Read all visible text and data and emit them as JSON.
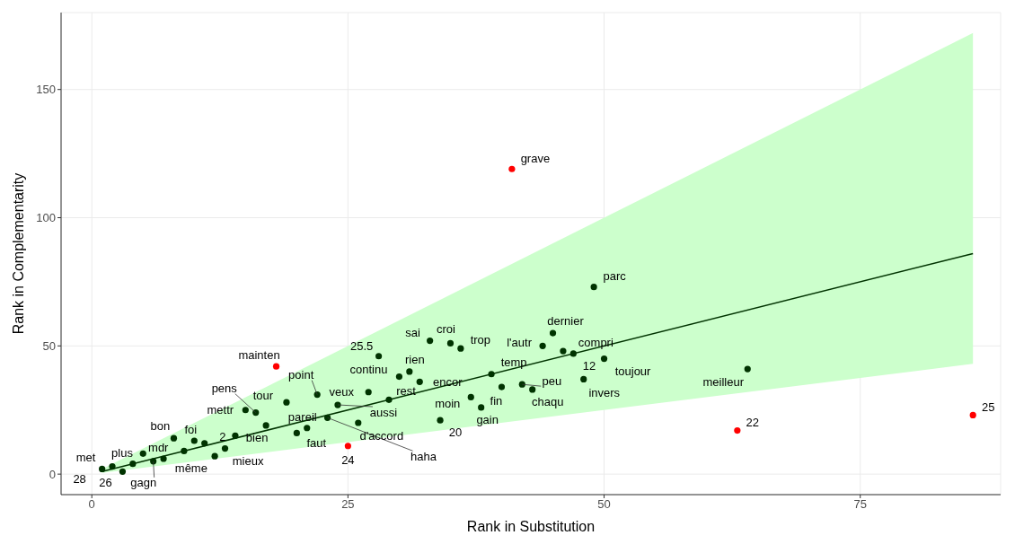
{
  "chart_data": {
    "type": "scatter",
    "xlabel": "Rank in Substitution",
    "ylabel": "Rank in Complementarity",
    "xlim": [
      -3,
      88.7
    ],
    "ylim": [
      -8,
      180
    ],
    "xticks": [
      0,
      25,
      50,
      75
    ],
    "yticks": [
      0,
      50,
      100,
      150
    ],
    "grid": true,
    "series": [
      {
        "type": "line",
        "x": [
          1,
          86
        ],
        "values": [
          1,
          86
        ],
        "lower": [
          0.5,
          43
        ],
        "upper": [
          2,
          172
        ],
        "color": "#003300"
      },
      {
        "marker": "circle",
        "x": [
          1,
          2,
          3,
          4,
          5,
          6,
          7,
          8,
          9,
          10,
          11,
          12,
          13,
          14,
          15,
          16,
          17,
          19,
          20,
          21,
          22,
          23,
          24,
          26,
          27,
          28,
          29,
          30,
          31,
          32,
          33,
          34,
          35,
          36,
          37,
          38,
          39,
          40,
          42,
          43,
          44,
          45,
          46,
          47,
          48,
          49,
          50,
          64
        ],
        "values": [
          2,
          3,
          1,
          4,
          8,
          5,
          6,
          14,
          9,
          13,
          12,
          7,
          10,
          15,
          25,
          24,
          19,
          28,
          16,
          18,
          31,
          22,
          27,
          20,
          32,
          46,
          29,
          38,
          40,
          36,
          52,
          21,
          51,
          49,
          30,
          26,
          39,
          34,
          35,
          33,
          50,
          55,
          48,
          47,
          37,
          73,
          45,
          41
        ],
        "color": "#003300"
      },
      {
        "marker": "circle",
        "x": [
          18,
          25,
          41,
          63,
          86
        ],
        "values": [
          42,
          11,
          119,
          17,
          23
        ],
        "color": "#ff0000"
      }
    ],
    "annotations": [
      {
        "text": "met",
        "x": 1,
        "y": 2
      },
      {
        "text": "28",
        "x": 1,
        "y": 2
      },
      {
        "text": "plus",
        "x": 2,
        "y": 3
      },
      {
        "text": "26",
        "x": 3,
        "y": 1
      },
      {
        "text": "mdr",
        "x": 5,
        "y": 8
      },
      {
        "text": "gagn",
        "x": 6,
        "y": 5
      },
      {
        "text": "bon",
        "x": 8,
        "y": 14
      },
      {
        "text": "même",
        "x": 9,
        "y": 9
      },
      {
        "text": "foi",
        "x": 10,
        "y": 13
      },
      {
        "text": "mieux",
        "x": 12,
        "y": 7
      },
      {
        "text": "2",
        "x": 14,
        "y": 15
      },
      {
        "text": "bien",
        "x": 17,
        "y": 19
      },
      {
        "text": "mettr",
        "x": 15,
        "y": 25
      },
      {
        "text": "pens",
        "x": 16,
        "y": 24
      },
      {
        "text": "tour",
        "x": 19,
        "y": 28
      },
      {
        "text": "mainten",
        "x": 18,
        "y": 42
      },
      {
        "text": "point",
        "x": 22,
        "y": 31
      },
      {
        "text": "faut",
        "x": 20,
        "y": 16
      },
      {
        "text": "pareil",
        "x": 21,
        "y": 18
      },
      {
        "text": "haha",
        "x": 23,
        "y": 22
      },
      {
        "text": "aussi",
        "x": 24,
        "y": 27
      },
      {
        "text": "24",
        "x": 25,
        "y": 11
      },
      {
        "text": "d'accord",
        "x": 26,
        "y": 20
      },
      {
        "text": "veux",
        "x": 27,
        "y": 32
      },
      {
        "text": "25.5",
        "x": 28,
        "y": 46
      },
      {
        "text": "rest",
        "x": 29,
        "y": 29
      },
      {
        "text": "continu",
        "x": 30,
        "y": 38
      },
      {
        "text": "rien",
        "x": 31,
        "y": 40
      },
      {
        "text": "encor",
        "x": 32,
        "y": 36
      },
      {
        "text": "sai",
        "x": 33,
        "y": 52
      },
      {
        "text": "20",
        "x": 34,
        "y": 21
      },
      {
        "text": "croi",
        "x": 35,
        "y": 51
      },
      {
        "text": "trop",
        "x": 36,
        "y": 49
      },
      {
        "text": "moin",
        "x": 37,
        "y": 30
      },
      {
        "text": "gain",
        "x": 38,
        "y": 26
      },
      {
        "text": "temp",
        "x": 39,
        "y": 39
      },
      {
        "text": "fin",
        "x": 40,
        "y": 34
      },
      {
        "text": "grave",
        "x": 41,
        "y": 119
      },
      {
        "text": "peu",
        "x": 42,
        "y": 35
      },
      {
        "text": "chaqu",
        "x": 43,
        "y": 33
      },
      {
        "text": "l'autr",
        "x": 44,
        "y": 50
      },
      {
        "text": "dernier",
        "x": 45,
        "y": 55
      },
      {
        "text": "compri",
        "x": 47,
        "y": 47
      },
      {
        "text": "12",
        "x": 46,
        "y": 48
      },
      {
        "text": "invers",
        "x": 48,
        "y": 37
      },
      {
        "text": "parc",
        "x": 49,
        "y": 73
      },
      {
        "text": "toujour",
        "x": 50,
        "y": 45
      },
      {
        "text": "22",
        "x": 63,
        "y": 17
      },
      {
        "text": "meilleur",
        "x": 64,
        "y": 41
      },
      {
        "text": "25",
        "x": 86,
        "y": 23
      }
    ]
  }
}
